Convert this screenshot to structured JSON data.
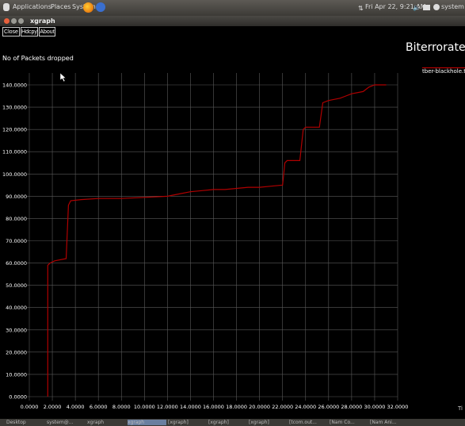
{
  "topbar": {
    "menus": [
      "Applications",
      "Places",
      "System"
    ],
    "clock": "Fri Apr 22,  9:21 AM",
    "user": "system"
  },
  "window": {
    "title": "xgraph"
  },
  "toolbar": {
    "close": "Close",
    "hdcpy": "Hdcpy",
    "about": "About"
  },
  "chart_data": {
    "type": "line",
    "title": "Biterrorate",
    "ylabel": "No of Packets dropped",
    "xlabel": "Ti",
    "xlim": [
      0,
      32
    ],
    "ylim": [
      0,
      140
    ],
    "x_ticks": [
      "0.0000",
      "2.0000",
      "4.0000",
      "6.0000",
      "8.0000",
      "10.0000",
      "12.0000",
      "14.0000",
      "16.0000",
      "18.0000",
      "20.0000",
      "22.0000",
      "24.0000",
      "26.0000",
      "28.0000",
      "30.0000",
      "32.0000"
    ],
    "y_ticks": [
      "0.0000",
      "10.0000",
      "20.0000",
      "30.0000",
      "40.0000",
      "50.0000",
      "60.0000",
      "70.0000",
      "80.0000",
      "90.0000",
      "100.0000",
      "110.0000",
      "120.0000",
      "130.0000",
      "140.0000"
    ],
    "grid": true,
    "legend": "top-right",
    "series": [
      {
        "name": "tber-blackhole.tr",
        "color": "#b00000",
        "x": [
          1.6,
          1.6,
          1.8,
          2.2,
          3.2,
          3.4,
          3.6,
          4.5,
          6,
          8,
          10,
          12,
          13,
          14,
          15,
          16,
          17,
          18,
          19,
          20,
          21,
          22,
          22.2,
          22.4,
          23.5,
          23.8,
          24,
          25.2,
          25.5,
          26,
          27,
          27.5,
          28,
          29,
          29.5,
          30,
          31
        ],
        "y": [
          0,
          59,
          60,
          61,
          62,
          86,
          88,
          88.5,
          89,
          89,
          89.5,
          90,
          91,
          92,
          92.5,
          93,
          93,
          93.5,
          94,
          94,
          94.5,
          95,
          105,
          106,
          106,
          120,
          121,
          121,
          132,
          133,
          134,
          135,
          136,
          137,
          139,
          140,
          140
        ]
      }
    ]
  },
  "taskbar": {
    "items": [
      "Desktop",
      "system@...",
      "xgraph",
      "xgraph",
      "[xgraph]",
      "[xgraph]",
      "[xgraph]",
      "[tcom.out...",
      "[Nam Co...",
      "[Nam Ani..."
    ]
  }
}
